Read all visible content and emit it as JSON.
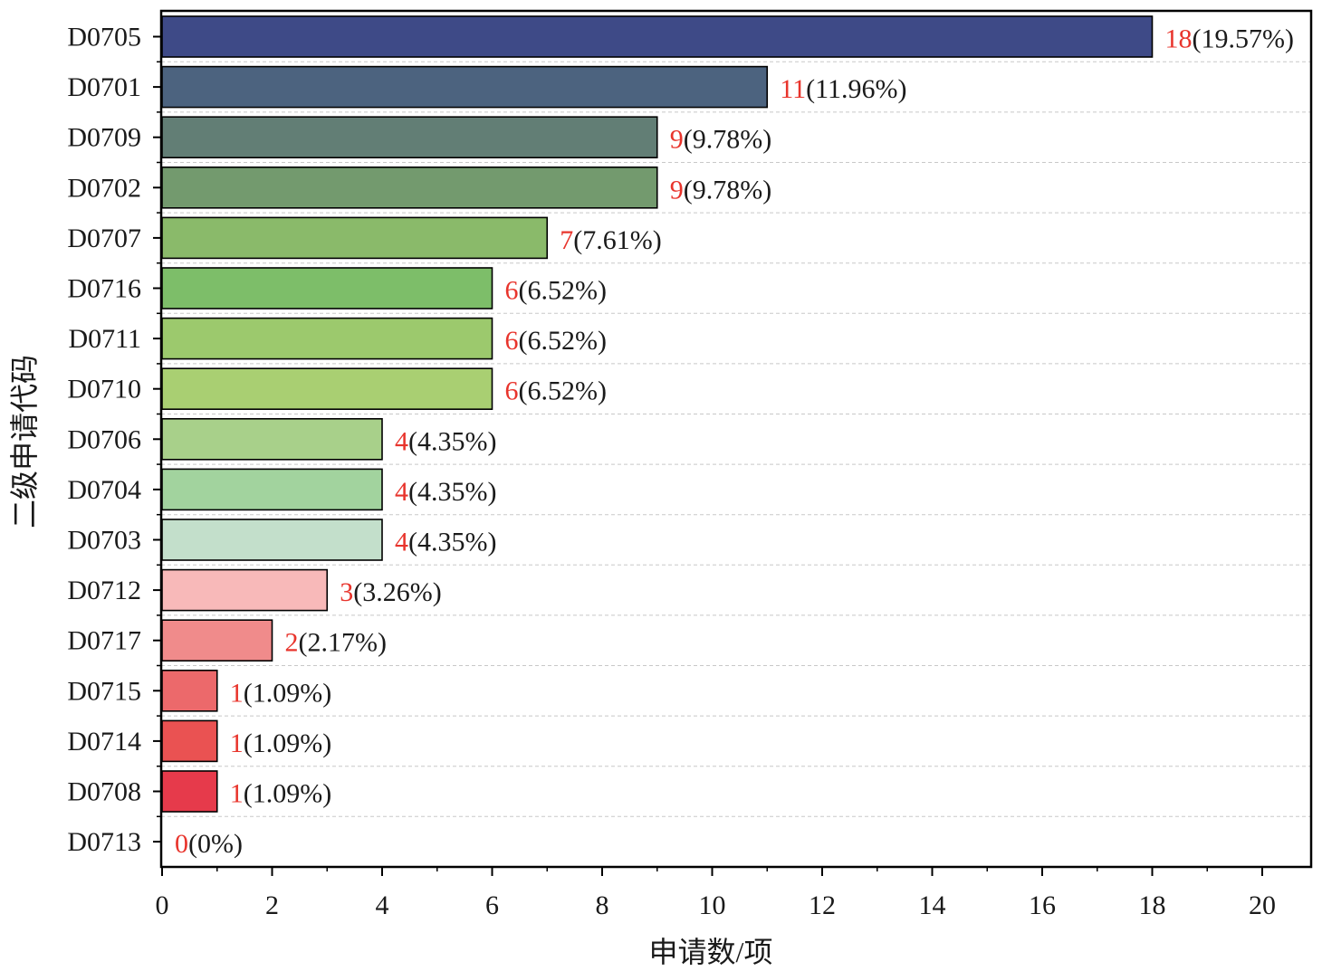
{
  "chart_data": {
    "type": "bar",
    "orientation": "horizontal",
    "title": "",
    "xlabel": "申请数/项",
    "ylabel": "二级申请代码",
    "xlim": [
      0,
      20.9
    ],
    "xticks": [
      "0",
      "2",
      "4",
      "6",
      "8",
      "10",
      "12",
      "14",
      "16",
      "18",
      "20"
    ],
    "grid": "horizontal dashed",
    "categories": [
      "D0705",
      "D0701",
      "D0709",
      "D0702",
      "D0707",
      "D0716",
      "D0711",
      "D0710",
      "D0706",
      "D0704",
      "D0703",
      "D0712",
      "D0717",
      "D0715",
      "D0714",
      "D0708",
      "D0713"
    ],
    "values": [
      18,
      11,
      9,
      9,
      7,
      6,
      6,
      6,
      4,
      4,
      4,
      3,
      2,
      1,
      1,
      1,
      0
    ],
    "value_labels": [
      "18",
      "11",
      "9",
      "9",
      "7",
      "6",
      "6",
      "6",
      "4",
      "4",
      "4",
      "3",
      "2",
      "1",
      "1",
      "1",
      "0"
    ],
    "percent_labels": [
      "(19.57%)",
      "(11.96%)",
      "(9.78%)",
      "(9.78%)",
      "(7.61%)",
      "(6.52%)",
      "(6.52%)",
      "(6.52%)",
      "(4.35%)",
      "(4.35%)",
      "(4.35%)",
      "(3.26%)",
      "(2.17%)",
      "(1.09%)",
      "(1.09%)",
      "(1.09%)",
      "(0%)"
    ],
    "colors": [
      "#3e4a87",
      "#4c637f",
      "#627e75",
      "#739a6e",
      "#8aba6a",
      "#7dbe69",
      "#9cc96d",
      "#a9cf72",
      "#a8d08a",
      "#a2d39e",
      "#c3dfcb",
      "#f8b9b9",
      "#f08b8b",
      "#ec696b",
      "#ea5252",
      "#e63a4b",
      "#ffffff"
    ]
  }
}
